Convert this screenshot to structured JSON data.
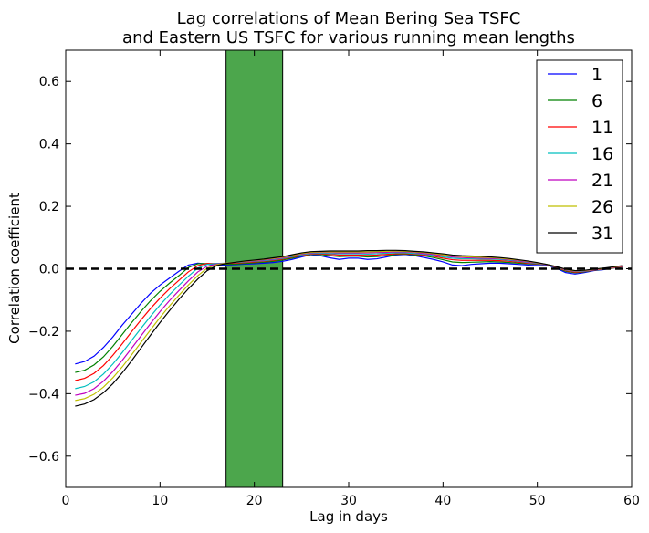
{
  "chart_data": {
    "type": "line",
    "title_lines": [
      "Lag correlations of Mean Bering Sea TSFC",
      "and Eastern US TSFC for various running mean lengths"
    ],
    "xlabel": "Lag in days",
    "ylabel": "Correlation coefficient",
    "xlim": [
      0,
      60
    ],
    "ylim": [
      -0.7,
      0.7
    ],
    "xticks": [
      0,
      10,
      20,
      30,
      40,
      50,
      60
    ],
    "yticks": [
      -0.6,
      -0.4,
      -0.2,
      0.0,
      0.2,
      0.4,
      0.6
    ],
    "ytick_labels": [
      "−0.6",
      "−0.4",
      "−0.2",
      "0.0",
      "0.2",
      "0.4",
      "0.6"
    ],
    "shaded_span": {
      "x0": 17,
      "x1": 23,
      "color": "#4ca64c"
    },
    "reference_line": {
      "y": 0.0,
      "style": "dashed",
      "color": "#000000"
    },
    "legend_position": "top-right",
    "x": [
      1,
      2,
      3,
      4,
      5,
      6,
      7,
      8,
      9,
      10,
      11,
      12,
      13,
      14,
      15,
      16,
      17,
      18,
      19,
      20,
      21,
      22,
      23,
      24,
      25,
      26,
      27,
      28,
      29,
      30,
      31,
      32,
      33,
      34,
      35,
      36,
      37,
      38,
      39,
      40,
      41,
      42,
      43,
      44,
      45,
      46,
      47,
      48,
      49,
      50,
      51,
      52,
      53,
      54,
      55,
      56,
      57,
      58,
      59
    ],
    "series": [
      {
        "name": "1",
        "color": "#0000ff",
        "values": [
          -0.305,
          -0.297,
          -0.28,
          -0.252,
          -0.218,
          -0.18,
          -0.145,
          -0.11,
          -0.078,
          -0.052,
          -0.03,
          -0.008,
          0.012,
          0.018,
          0.015,
          0.012,
          0.012,
          0.013,
          0.015,
          0.016,
          0.018,
          0.02,
          0.024,
          0.03,
          0.038,
          0.045,
          0.042,
          0.035,
          0.03,
          0.034,
          0.034,
          0.03,
          0.032,
          0.038,
          0.044,
          0.046,
          0.042,
          0.036,
          0.03,
          0.022,
          0.012,
          0.01,
          0.014,
          0.016,
          0.018,
          0.018,
          0.016,
          0.014,
          0.012,
          0.013,
          0.012,
          0.002,
          -0.012,
          -0.017,
          -0.012,
          -0.006,
          -0.003,
          0.002,
          0.006
        ]
      },
      {
        "name": "6",
        "color": "#008000",
        "values": [
          -0.332,
          -0.325,
          -0.308,
          -0.282,
          -0.248,
          -0.21,
          -0.172,
          -0.136,
          -0.102,
          -0.072,
          -0.046,
          -0.022,
          0.004,
          0.016,
          0.017,
          0.015,
          0.014,
          0.015,
          0.017,
          0.019,
          0.021,
          0.024,
          0.028,
          0.034,
          0.041,
          0.046,
          0.046,
          0.042,
          0.039,
          0.04,
          0.04,
          0.038,
          0.039,
          0.042,
          0.046,
          0.047,
          0.045,
          0.041,
          0.036,
          0.029,
          0.022,
          0.02,
          0.021,
          0.022,
          0.023,
          0.022,
          0.02,
          0.018,
          0.016,
          0.015,
          0.013,
          0.004,
          -0.008,
          -0.013,
          -0.01,
          -0.005,
          -0.002,
          0.002,
          0.006
        ]
      },
      {
        "name": "11",
        "color": "#ff0000",
        "values": [
          -0.358,
          -0.351,
          -0.335,
          -0.31,
          -0.277,
          -0.24,
          -0.201,
          -0.163,
          -0.127,
          -0.094,
          -0.064,
          -0.037,
          -0.01,
          0.01,
          0.017,
          0.017,
          0.017,
          0.018,
          0.02,
          0.022,
          0.024,
          0.027,
          0.031,
          0.037,
          0.043,
          0.047,
          0.048,
          0.046,
          0.044,
          0.044,
          0.044,
          0.043,
          0.044,
          0.046,
          0.048,
          0.049,
          0.047,
          0.044,
          0.04,
          0.034,
          0.029,
          0.027,
          0.027,
          0.027,
          0.027,
          0.026,
          0.024,
          0.021,
          0.018,
          0.016,
          0.013,
          0.005,
          -0.006,
          -0.011,
          -0.009,
          -0.004,
          -0.001,
          0.003,
          0.007
        ]
      },
      {
        "name": "16",
        "color": "#00bfbf",
        "values": [
          -0.384,
          -0.377,
          -0.362,
          -0.337,
          -0.305,
          -0.268,
          -0.229,
          -0.19,
          -0.152,
          -0.116,
          -0.083,
          -0.053,
          -0.024,
          0.002,
          0.014,
          0.017,
          0.018,
          0.02,
          0.022,
          0.024,
          0.026,
          0.029,
          0.033,
          0.039,
          0.045,
          0.049,
          0.05,
          0.049,
          0.048,
          0.048,
          0.048,
          0.047,
          0.048,
          0.05,
          0.051,
          0.051,
          0.049,
          0.047,
          0.043,
          0.038,
          0.034,
          0.032,
          0.032,
          0.031,
          0.031,
          0.03,
          0.027,
          0.024,
          0.02,
          0.017,
          0.013,
          0.006,
          -0.004,
          -0.009,
          -0.008,
          -0.003,
          0.0,
          0.004,
          0.008
        ]
      },
      {
        "name": "21",
        "color": "#bf00bf",
        "values": [
          -0.405,
          -0.399,
          -0.384,
          -0.36,
          -0.329,
          -0.293,
          -0.254,
          -0.214,
          -0.175,
          -0.137,
          -0.102,
          -0.07,
          -0.039,
          -0.01,
          0.008,
          0.015,
          0.018,
          0.021,
          0.023,
          0.025,
          0.028,
          0.031,
          0.035,
          0.041,
          0.047,
          0.051,
          0.052,
          0.052,
          0.051,
          0.051,
          0.051,
          0.051,
          0.052,
          0.053,
          0.054,
          0.054,
          0.052,
          0.049,
          0.046,
          0.042,
          0.038,
          0.036,
          0.035,
          0.034,
          0.033,
          0.032,
          0.029,
          0.026,
          0.022,
          0.018,
          0.013,
          0.006,
          -0.003,
          -0.008,
          -0.007,
          -0.003,
          0.0,
          0.004,
          0.008
        ]
      },
      {
        "name": "26",
        "color": "#bfbf00",
        "values": [
          -0.422,
          -0.416,
          -0.402,
          -0.379,
          -0.349,
          -0.314,
          -0.275,
          -0.235,
          -0.195,
          -0.156,
          -0.119,
          -0.085,
          -0.052,
          -0.022,
          0.002,
          0.013,
          0.018,
          0.021,
          0.024,
          0.027,
          0.03,
          0.033,
          0.037,
          0.043,
          0.049,
          0.053,
          0.054,
          0.054,
          0.054,
          0.054,
          0.054,
          0.054,
          0.055,
          0.056,
          0.057,
          0.056,
          0.054,
          0.052,
          0.049,
          0.045,
          0.041,
          0.039,
          0.038,
          0.037,
          0.036,
          0.034,
          0.031,
          0.028,
          0.024,
          0.019,
          0.014,
          0.007,
          -0.002,
          -0.007,
          -0.006,
          -0.002,
          0.001,
          0.005,
          0.009
        ]
      },
      {
        "name": "31",
        "color": "#000000",
        "values": [
          -0.44,
          -0.433,
          -0.419,
          -0.397,
          -0.368,
          -0.333,
          -0.294,
          -0.253,
          -0.212,
          -0.172,
          -0.134,
          -0.098,
          -0.064,
          -0.033,
          -0.006,
          0.01,
          0.017,
          0.021,
          0.025,
          0.028,
          0.031,
          0.035,
          0.039,
          0.045,
          0.051,
          0.055,
          0.056,
          0.057,
          0.057,
          0.057,
          0.057,
          0.058,
          0.058,
          0.059,
          0.059,
          0.058,
          0.056,
          0.054,
          0.051,
          0.048,
          0.044,
          0.042,
          0.041,
          0.04,
          0.038,
          0.036,
          0.033,
          0.029,
          0.025,
          0.02,
          0.014,
          0.007,
          -0.001,
          -0.006,
          -0.005,
          -0.001,
          0.002,
          0.006,
          0.01
        ]
      }
    ]
  }
}
